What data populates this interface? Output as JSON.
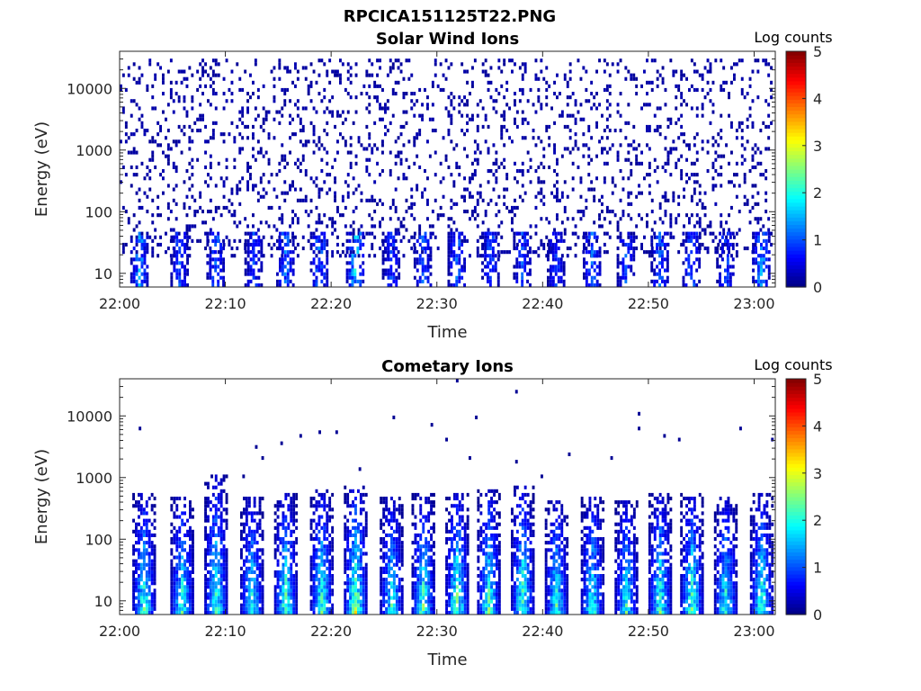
{
  "figure": {
    "title": "RPCICA151125T22.PNG"
  },
  "chart_data": [
    {
      "type": "heatmap",
      "title": "Solar Wind Ions",
      "xlabel": "Time",
      "ylabel": "Energy (eV)",
      "x_ticks": [
        "22:00",
        "22:10",
        "22:20",
        "22:30",
        "22:40",
        "22:50",
        "23:00"
      ],
      "x_range_minutes": [
        0,
        62
      ],
      "y_scale": "log",
      "y_ticks": [
        "10",
        "100",
        "1000",
        "10000"
      ],
      "y_range": [
        6,
        40000
      ],
      "colorbar": {
        "label": "Log counts",
        "ticks": [
          "0",
          "1",
          "2",
          "3",
          "4",
          "5"
        ],
        "range": [
          0,
          5
        ],
        "colormap": "jet"
      },
      "low_energy_bursts": [
        {
          "t": 1.8,
          "level": 1.8
        },
        {
          "t": 5.6,
          "level": 1.3
        },
        {
          "t": 9.0,
          "level": 1.4
        },
        {
          "t": 12.6,
          "level": 1.2
        },
        {
          "t": 15.6,
          "level": 1.5
        },
        {
          "t": 18.8,
          "level": 1.6
        },
        {
          "t": 22.2,
          "level": 2.2
        },
        {
          "t": 25.6,
          "level": 1.2
        },
        {
          "t": 28.6,
          "level": 1.4
        },
        {
          "t": 31.8,
          "level": 1.5
        },
        {
          "t": 35.0,
          "level": 1.4
        },
        {
          "t": 38.0,
          "level": 1.3
        },
        {
          "t": 41.2,
          "level": 1.2
        },
        {
          "t": 44.6,
          "level": 1.5
        },
        {
          "t": 47.8,
          "level": 1.3
        },
        {
          "t": 51.0,
          "level": 1.4
        },
        {
          "t": 54.0,
          "level": 1.5
        },
        {
          "t": 57.2,
          "level": 1.3
        },
        {
          "t": 60.6,
          "level": 1.8
        }
      ],
      "background": {
        "level": 0.1,
        "energy_range": [
          20,
          30000
        ]
      }
    },
    {
      "type": "heatmap",
      "title": "Cometary Ions",
      "xlabel": "Time",
      "ylabel": "Energy (eV)",
      "x_ticks": [
        "22:00",
        "22:10",
        "22:20",
        "22:30",
        "22:40",
        "22:50",
        "23:00"
      ],
      "x_range_minutes": [
        0,
        62
      ],
      "y_scale": "log",
      "y_ticks": [
        "10",
        "100",
        "1000",
        "10000"
      ],
      "y_range": [
        6,
        40000
      ],
      "colorbar": {
        "label": "Log counts",
        "ticks": [
          "0",
          "1",
          "2",
          "3",
          "4",
          "5"
        ],
        "range": [
          0,
          5
        ],
        "colormap": "jet"
      },
      "ion_bursts": [
        {
          "t": 2.2,
          "level": 2.6,
          "max_energy": 500
        },
        {
          "t": 5.8,
          "level": 2.5,
          "max_energy": 450
        },
        {
          "t": 9.0,
          "level": 2.6,
          "max_energy": 1000
        },
        {
          "t": 12.4,
          "level": 2.4,
          "max_energy": 450
        },
        {
          "t": 15.6,
          "level": 2.7,
          "max_energy": 500
        },
        {
          "t": 19.0,
          "level": 2.6,
          "max_energy": 600
        },
        {
          "t": 22.2,
          "level": 3.1,
          "max_energy": 700
        },
        {
          "t": 25.6,
          "level": 2.4,
          "max_energy": 450
        },
        {
          "t": 28.6,
          "level": 2.6,
          "max_energy": 550
        },
        {
          "t": 31.8,
          "level": 2.8,
          "max_energy": 500
        },
        {
          "t": 34.8,
          "level": 2.6,
          "max_energy": 600
        },
        {
          "t": 38.0,
          "level": 2.7,
          "max_energy": 700
        },
        {
          "t": 41.2,
          "level": 2.5,
          "max_energy": 400
        },
        {
          "t": 44.6,
          "level": 2.5,
          "max_energy": 450
        },
        {
          "t": 47.8,
          "level": 2.4,
          "max_energy": 400
        },
        {
          "t": 51.0,
          "level": 2.6,
          "max_energy": 500
        },
        {
          "t": 54.0,
          "level": 2.7,
          "max_energy": 550
        },
        {
          "t": 57.2,
          "level": 2.5,
          "max_energy": 450
        },
        {
          "t": 60.6,
          "level": 2.6,
          "max_energy": 550
        }
      ],
      "sparse_points": [
        {
          "t": 1.8,
          "energy": 6200
        },
        {
          "t": 8.6,
          "energy": 1000
        },
        {
          "t": 11.6,
          "energy": 1100
        },
        {
          "t": 12.8,
          "energy": 3200
        },
        {
          "t": 13.4,
          "energy": 2200
        },
        {
          "t": 15.2,
          "energy": 3600
        },
        {
          "t": 17.0,
          "energy": 4600
        },
        {
          "t": 18.8,
          "energy": 5200
        },
        {
          "t": 20.4,
          "energy": 5800
        },
        {
          "t": 22.6,
          "energy": 1300
        },
        {
          "t": 25.8,
          "energy": 9800
        },
        {
          "t": 29.4,
          "energy": 7000
        },
        {
          "t": 30.8,
          "energy": 4400
        },
        {
          "t": 31.8,
          "energy": 38000
        },
        {
          "t": 33.0,
          "energy": 2200
        },
        {
          "t": 33.6,
          "energy": 9300
        },
        {
          "t": 37.4,
          "energy": 26000
        },
        {
          "t": 37.4,
          "energy": 1900
        },
        {
          "t": 39.8,
          "energy": 1000
        },
        {
          "t": 42.4,
          "energy": 2400
        },
        {
          "t": 46.4,
          "energy": 2200
        },
        {
          "t": 49.0,
          "energy": 10500
        },
        {
          "t": 49.0,
          "energy": 6400
        },
        {
          "t": 51.4,
          "energy": 4600
        },
        {
          "t": 52.8,
          "energy": 4100
        },
        {
          "t": 58.6,
          "energy": 5900
        },
        {
          "t": 61.6,
          "energy": 4200
        }
      ]
    }
  ]
}
